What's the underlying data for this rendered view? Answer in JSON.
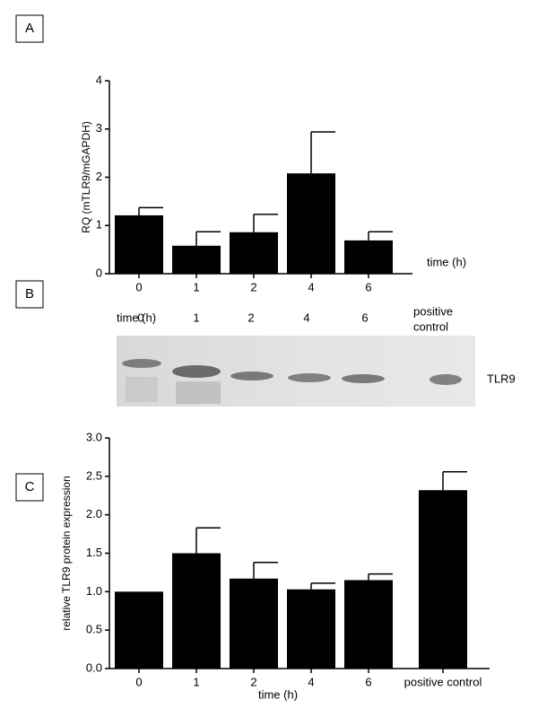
{
  "chart_data": [
    {
      "type": "bar",
      "panel": "A",
      "ylabel": "RQ (mTLR9/mGAPDH)",
      "xlabel": "time (h)",
      "categories": [
        "0",
        "1",
        "2",
        "4",
        "6"
      ],
      "values": [
        1.21,
        0.58,
        0.86,
        2.08,
        0.69
      ],
      "errors": [
        0.16,
        0.29,
        0.37,
        0.86,
        0.18
      ],
      "color": "#000000",
      "ylim": [
        0,
        4
      ],
      "yticks": [
        0,
        1,
        2,
        3,
        4
      ],
      "grid": false
    },
    {
      "type": "bar",
      "panel": "C",
      "ylabel": "relative TLR9 protein expression",
      "xlabel": "time (h)",
      "categories": [
        "0",
        "1",
        "2",
        "4",
        "6",
        "positive control"
      ],
      "values": [
        1.0,
        1.5,
        1.17,
        1.03,
        1.15,
        2.32
      ],
      "errors": [
        null,
        0.33,
        0.21,
        0.08,
        0.08,
        0.24
      ],
      "color": "#000000",
      "ylim": [
        0,
        3
      ],
      "yticks": [
        {
          "value": 0,
          "label": "0.0"
        },
        {
          "value": 0.5,
          "label": "0.5"
        },
        {
          "value": 1,
          "label": "1.0"
        },
        {
          "value": 1.5,
          "label": "1.5"
        },
        {
          "value": 2,
          "label": "2.0"
        },
        {
          "value": 2.5,
          "label": "2.5"
        },
        {
          "value": 3,
          "label": "3.0"
        }
      ],
      "grid": false
    }
  ],
  "blot": {
    "panel": "B",
    "lane_axis_label": "time (h)",
    "lanes": [
      "0",
      "1",
      "2",
      "4",
      "6"
    ],
    "positive_control": [
      "positive",
      "control"
    ],
    "band_label": "TLR9"
  }
}
